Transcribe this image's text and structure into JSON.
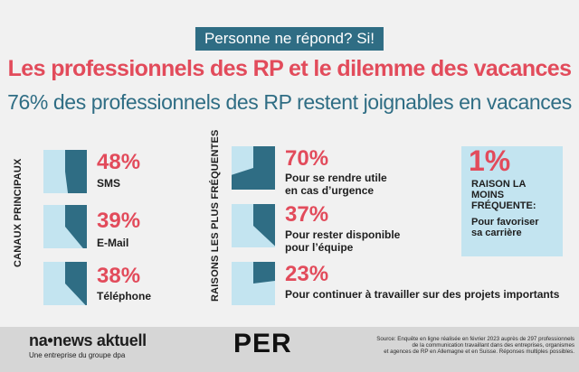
{
  "header": {
    "tag": "Personne ne répond? Si!",
    "title": "Les professionnels des RP et le dilemme des vacances",
    "subtitle": "76% des professionnels des RP restent joignables en vacances"
  },
  "channels": {
    "heading": "CANAUX PRINCIPAUX",
    "items": [
      {
        "pct": "48%",
        "label": "SMS",
        "value": 0.48
      },
      {
        "pct": "39%",
        "label": "E-Mail",
        "value": 0.39
      },
      {
        "pct": "38%",
        "label": "Téléphone",
        "value": 0.38
      }
    ]
  },
  "reasons": {
    "heading": "RAISONS LES PLUS FRÉQUENTES",
    "items": [
      {
        "pct": "70%",
        "label_line1": "Pour se rendre utile",
        "label_line2": "en cas d’urgence",
        "value": 0.7
      },
      {
        "pct": "37%",
        "label_line1": "Pour rester disponible",
        "label_line2": "pour l’équipe",
        "value": 0.37
      },
      {
        "pct": "23%",
        "label_line1": "Pour continuer à travailler sur des projets importants",
        "label_line2": "",
        "value": 0.23
      }
    ]
  },
  "least": {
    "pct": "1%",
    "label_line1": "RAISON LA",
    "label_line2": "MOINS",
    "label_line3": "FRÉQUENTE:",
    "sub_line1": "Pour favoriser",
    "sub_line2": "sa carrière"
  },
  "footer": {
    "logo": "na•news aktuell",
    "logo_sub": "Une entreprise du groupe dpa",
    "per": "PER",
    "source_line1": "Source: Enquête en ligne réalisée en février 2023 auprès de 297 professionnels",
    "source_line2": "de la communication travaillant dans des entreprises, organismes",
    "source_line3": "et agences de RP en Allemagne et en Suisse. Réponses multiples possibles."
  },
  "colors": {
    "accent_red": "#e24b5b",
    "accent_blue": "#2f6d84",
    "light_blue": "#c3e4f0",
    "footer_bg": "#d6d6d6"
  }
}
